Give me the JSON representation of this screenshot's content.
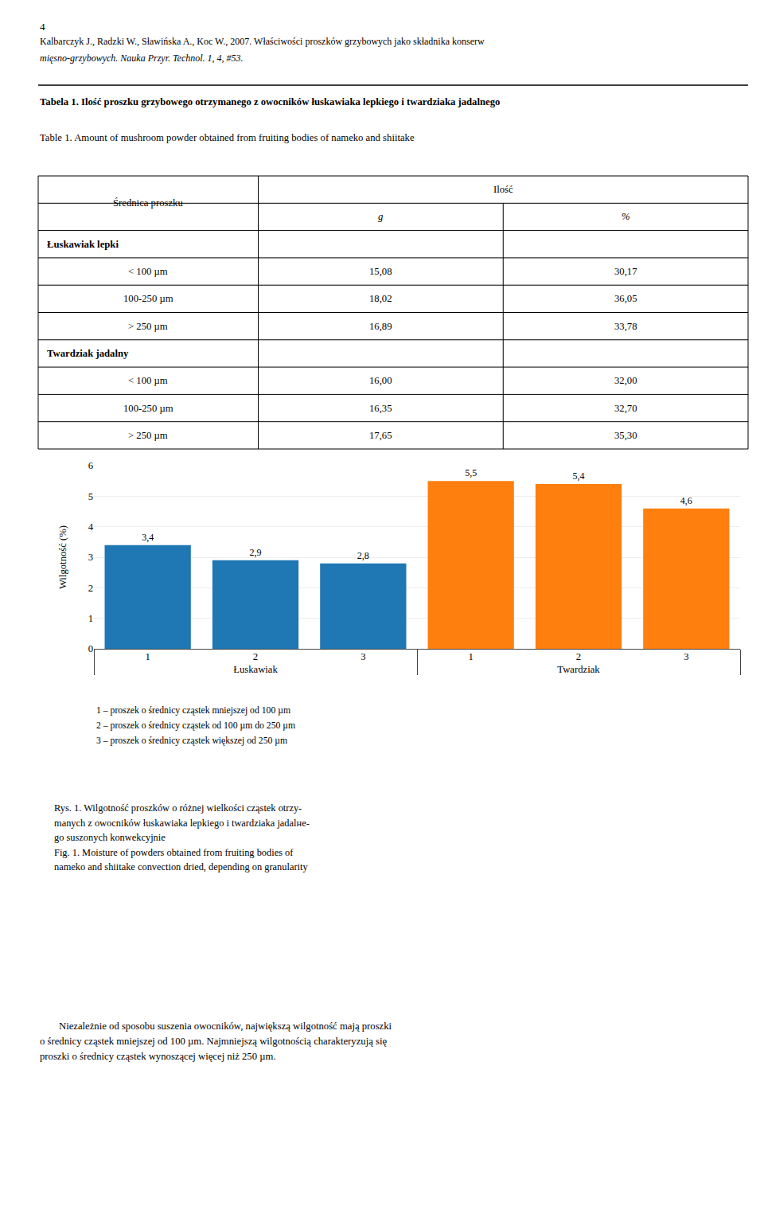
{
  "chart_data": [
    {
      "type": "table",
      "title": "Tabela 1. Ilość proszku grzybowego otrzymanego z owocników łuskawiaka lepkiego i twardziaka jadalnego",
      "subtitle": "Table 1. Amount of mushroom powder obtained from fruiting bodies of nameko and shiitake",
      "annotations": [
        [
          "4"
        ],
        [
          "Kalbarczyk J., Radzki W., Sławińska A., Koc W., 2007. Właściwości proszków grzybowych jako składnika konserw",
          "mięsno-grzybowych. Nauka Przyr. Technol. 1, 4, #53."
        ]
      ],
      "columns": [
        "Średnica proszku",
        "Ilość"
      ],
      "subcolumns": [
        "g",
        "%"
      ],
      "groups": [
        {
          "name": "Łuskawiak lepki",
          "rows": [
            [
              "< 100 µm",
              "15,08",
              "30,17"
            ],
            [
              "100-250 µm",
              "18,02",
              "36,05"
            ],
            [
              "> 250 µm",
              "16,89",
              "33,78"
            ]
          ]
        },
        {
          "name": "Twardziak jadalny",
          "rows": [
            [
              "< 100 µm",
              "16,00",
              "32,00"
            ],
            [
              "100-250 µm",
              "16,35",
              "32,70"
            ],
            [
              "> 250 µm",
              "17,65",
              "35,30"
            ]
          ]
        }
      ]
    },
    {
      "type": "bar",
      "categories": [
        "1",
        "2",
        "3"
      ],
      "series": [
        {
          "name": "Łuskawiak",
          "values": [
            3.4,
            2.9,
            2.8
          ],
          "value_labels": [
            "3,4",
            "2,9",
            "2,8"
          ]
        },
        {
          "name": "Twardziak",
          "values": [
            5.5,
            5.4,
            4.6
          ],
          "value_labels": [
            "5,5",
            "5,4",
            "4,6"
          ]
        }
      ],
      "ylabel": "Wilgotność (%)",
      "ylim": [
        0,
        6
      ],
      "yticks": [
        0,
        1,
        2,
        3,
        4,
        5,
        6
      ],
      "data_labels": true,
      "grid": true,
      "annotations": [
        [
          "1 – proszek o średnicy cząstek mniejszej od 100 µm",
          "2 – proszek o średnicy cząstek od 100 µm do 250 µm",
          "3 – proszek o średnicy cząstek większej od 250 µm"
        ],
        [
          "Rys. 1. Wilgotność proszków o różnej wielkości cząstek otrzy-",
          "manych z owocników łuskawiaka lepkiego i twardziaka jadalне-",
          "go suszonych konwekcyjnie",
          "Fig. 1. Moisture of powders obtained from fruiting bodies of",
          "nameko and shiitake convection dried, depending on granularity"
        ],
        [
          "Niezależnie od sposobu suszenia owocników, największą wilgotność mają proszki",
          "o średnicy cząstek mniejszej od 100 µm. Najmniejszą wilgotnością charakteryzują się",
          "proszki o średnicy cząstek wynoszącej więcej niż 250 µm."
        ]
      ]
    }
  ]
}
